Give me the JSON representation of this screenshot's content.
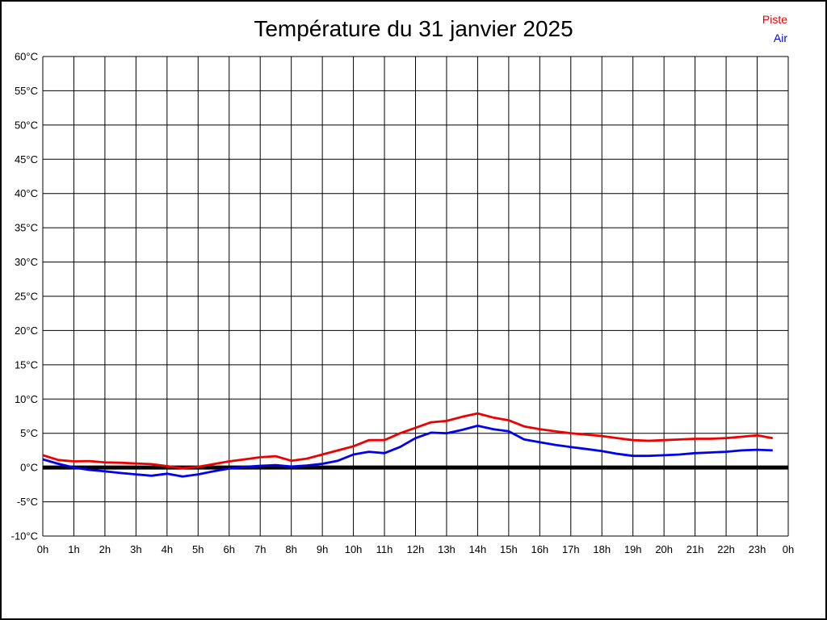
{
  "title": "Température du 31 janvier 2025",
  "legend": {
    "piste_label": "Piste",
    "air_label": "Air"
  },
  "colors": {
    "piste": "#ee0000",
    "air": "#0000ee",
    "grid": "#000000",
    "zero_line": "#000000",
    "title_text": "#000000"
  },
  "chart_data": {
    "type": "line",
    "title": "Température du 31 janvier 2025",
    "xlabel": "",
    "ylabel": "",
    "xlim": [
      0,
      24
    ],
    "ylim": [
      -10,
      60
    ],
    "y_step": 5,
    "y_tick_suffix": "°C",
    "grid": true,
    "legend_position": "top-right",
    "zero_line": true,
    "x_tick_labels": [
      "0h",
      "1h",
      "2h",
      "3h",
      "4h",
      "5h",
      "6h",
      "7h",
      "8h",
      "9h",
      "10h",
      "11h",
      "12h",
      "13h",
      "14h",
      "15h",
      "16h",
      "17h",
      "18h",
      "19h",
      "20h",
      "21h",
      "22h",
      "23h",
      "0h"
    ],
    "x": [
      0,
      0.5,
      1,
      1.5,
      2,
      2.5,
      3,
      3.5,
      4,
      4.5,
      5,
      5.5,
      6,
      6.5,
      7,
      7.5,
      8,
      8.5,
      9,
      9.5,
      10,
      10.5,
      11,
      11.5,
      12,
      12.5,
      13,
      13.5,
      14,
      14.5,
      15,
      15.5,
      16,
      16.5,
      17,
      17.5,
      18,
      18.5,
      19,
      19.5,
      20,
      20.5,
      21,
      21.5,
      22,
      22.5,
      23,
      23.5
    ],
    "series": [
      {
        "name": "Piste",
        "color": "#ee0000",
        "values": [
          1.8,
          1.1,
          0.9,
          0.95,
          0.75,
          0.7,
          0.6,
          0.5,
          0.2,
          -0.1,
          0.1,
          0.5,
          0.9,
          1.2,
          1.5,
          1.65,
          1.0,
          1.3,
          1.9,
          2.5,
          3.1,
          4.0,
          4.0,
          5.0,
          5.8,
          6.6,
          6.8,
          7.4,
          7.9,
          7.3,
          6.9,
          6.0,
          5.6,
          5.3,
          5.0,
          4.8,
          4.6,
          4.3,
          4.0,
          3.9,
          4.0,
          4.1,
          4.2,
          4.2,
          4.3,
          4.5,
          4.7,
          4.3
        ]
      },
      {
        "name": "Air",
        "color": "#0000ee",
        "values": [
          1.2,
          0.55,
          0.0,
          -0.35,
          -0.55,
          -0.8,
          -1.0,
          -1.2,
          -0.9,
          -1.3,
          -1.0,
          -0.55,
          -0.15,
          0.1,
          0.25,
          0.35,
          0.15,
          0.3,
          0.55,
          1.0,
          1.9,
          2.3,
          2.1,
          3.0,
          4.3,
          5.1,
          5.0,
          5.5,
          6.1,
          5.6,
          5.3,
          4.1,
          3.7,
          3.3,
          3.0,
          2.7,
          2.4,
          2.0,
          1.7,
          1.7,
          1.8,
          1.9,
          2.1,
          2.2,
          2.3,
          2.5,
          2.6,
          2.5
        ]
      }
    ]
  }
}
